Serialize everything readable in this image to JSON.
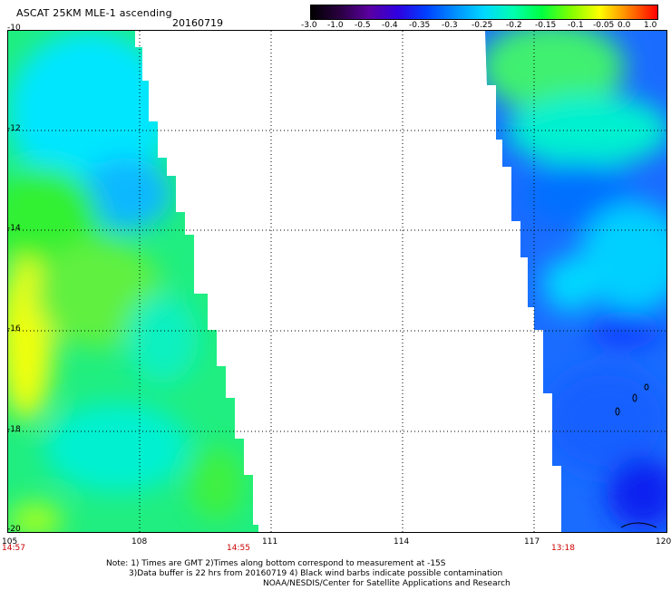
{
  "header": {
    "title": "ASCAT 25KM MLE-1 ascending",
    "date": "20160719"
  },
  "colorbar": {
    "labels": [
      "-3.0",
      "-1.0",
      "-0.5",
      "-0.4",
      "-0.35",
      "-0.3",
      "-0.25",
      "-0.2",
      "-0.15",
      "-0.1",
      "-0.05",
      "0.0",
      "1.0"
    ],
    "colors": [
      "#000000",
      "#2a0040",
      "#5a00a0",
      "#3000e0",
      "#0040ff",
      "#0090ff",
      "#00d8ff",
      "#00ffb0",
      "#00ff40",
      "#80ff00",
      "#ffff00",
      "#ff8000",
      "#ff0000"
    ]
  },
  "axes": {
    "lat_labels": [
      "-10",
      "-12",
      "-14",
      "-16",
      "-18",
      "-20"
    ],
    "lon_labels": [
      "105",
      "108",
      "111",
      "114",
      "117",
      "120"
    ]
  },
  "times": {
    "left": "14:57",
    "mid": "14:55",
    "right": "13:18"
  },
  "notes": {
    "line1": "Note: 1) Times are GMT 2)Times along bottom correspond to measurement at -15S",
    "line2": "3)Data buffer is 22 hrs from 20160719 4) Black wind barbs indicate possible contamination",
    "line3": "NOAA/NESDIS/Center for Satellite Applications and Research"
  }
}
